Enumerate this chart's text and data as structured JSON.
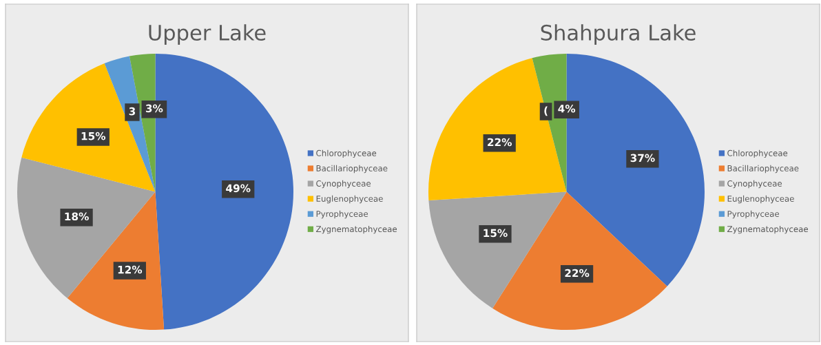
{
  "chart_data": [
    {
      "type": "pie",
      "title": "Upper Lake",
      "categories": [
        "Chlorophyceae",
        "Bacillariophyceae",
        "Cynophyceae",
        "Euglenophyceae",
        "Pyrophyceae",
        "Zygnematophyceae"
      ],
      "values": [
        49,
        12,
        18,
        15,
        3,
        3
      ],
      "colors": [
        "#4472c4",
        "#ed7d31",
        "#a5a5a5",
        "#ffc000",
        "#5b9bd5",
        "#70ad47"
      ],
      "value_labels": [
        "49%",
        "12%",
        "18%",
        "15%",
        "3",
        "3%"
      ],
      "legend": "right"
    },
    {
      "type": "pie",
      "title": "Shahpura Lake",
      "categories": [
        "Chlorophyceae",
        "Bacillariophyceae",
        "Cynophyceae",
        "Euglenophyceae",
        "Pyrophyceae",
        "Zygnematophyceae"
      ],
      "values": [
        37,
        22,
        15,
        22,
        0,
        4
      ],
      "colors": [
        "#4472c4",
        "#ed7d31",
        "#a5a5a5",
        "#ffc000",
        "#5b9bd5",
        "#70ad47"
      ],
      "value_labels": [
        "37%",
        "22%",
        "15%",
        "22%",
        "(",
        "4%"
      ],
      "legend": "right"
    }
  ]
}
